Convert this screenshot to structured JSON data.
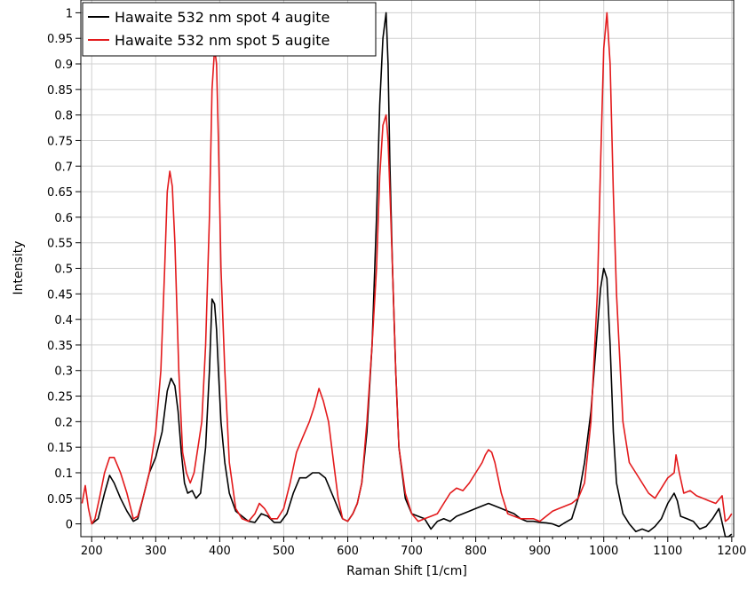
{
  "chart_data": {
    "type": "line",
    "title": "",
    "xlabel": "Raman Shift [1/cm]",
    "ylabel": "Intensity",
    "xlim": [
      183,
      1203
    ],
    "ylim": [
      -0.025,
      1.025
    ],
    "xticks": [
      200,
      300,
      400,
      500,
      600,
      700,
      800,
      900,
      1000,
      1100,
      1200
    ],
    "yticks": [
      0,
      0.05,
      0.1,
      0.15,
      0.2,
      0.25,
      0.3,
      0.35,
      0.4,
      0.45,
      0.5,
      0.55,
      0.6,
      0.65,
      0.7,
      0.75,
      0.8,
      0.85,
      0.9,
      0.95,
      1
    ],
    "ytick_labels": [
      "0",
      "0.05",
      "0.1",
      "0.15",
      "0.2",
      "0.25",
      "0.3",
      "0.35",
      "0.4",
      "0.45",
      "0.5",
      "0.55",
      "0.6",
      "0.65",
      "0.7",
      "0.75",
      "0.8",
      "0.85",
      "0.9",
      "0.95",
      "1"
    ],
    "grid": true,
    "legend_position": "top-left",
    "series": [
      {
        "name": "Hawaite 532 nm spot 4 augite",
        "color": "#000000",
        "x": [
          200,
          210,
          220,
          228,
          235,
          245,
          255,
          265,
          272,
          280,
          290,
          300,
          310,
          318,
          324,
          330,
          335,
          340,
          345,
          350,
          357,
          363,
          370,
          378,
          384,
          388,
          392,
          395,
          398,
          402,
          408,
          415,
          425,
          435,
          445,
          455,
          465,
          475,
          485,
          495,
          505,
          515,
          525,
          535,
          545,
          555,
          565,
          575,
          585,
          592,
          600,
          608,
          615,
          622,
          630,
          638,
          645,
          650,
          655,
          660,
          663,
          666,
          670,
          675,
          680,
          690,
          700,
          710,
          720,
          730,
          740,
          750,
          760,
          770,
          780,
          790,
          800,
          810,
          820,
          830,
          840,
          850,
          860,
          870,
          880,
          890,
          900,
          910,
          920,
          930,
          940,
          950,
          960,
          970,
          980,
          990,
          995,
          1000,
          1005,
          1010,
          1015,
          1020,
          1030,
          1040,
          1050,
          1060,
          1070,
          1080,
          1090,
          1100,
          1110,
          1115,
          1120,
          1130,
          1140,
          1150,
          1160,
          1170,
          1180,
          1190,
          1195,
          1200
        ],
        "y": [
          0.0,
          0.01,
          0.06,
          0.095,
          0.08,
          0.05,
          0.025,
          0.005,
          0.01,
          0.05,
          0.1,
          0.13,
          0.18,
          0.26,
          0.285,
          0.27,
          0.22,
          0.14,
          0.08,
          0.06,
          0.065,
          0.05,
          0.06,
          0.15,
          0.3,
          0.44,
          0.43,
          0.38,
          0.3,
          0.2,
          0.12,
          0.06,
          0.025,
          0.015,
          0.005,
          0.003,
          0.02,
          0.015,
          0.003,
          0.003,
          0.02,
          0.06,
          0.09,
          0.09,
          0.1,
          0.1,
          0.09,
          0.06,
          0.03,
          0.01,
          0.005,
          0.02,
          0.04,
          0.08,
          0.18,
          0.35,
          0.6,
          0.82,
          0.95,
          1.0,
          0.9,
          0.7,
          0.5,
          0.3,
          0.15,
          0.05,
          0.02,
          0.015,
          0.01,
          -0.01,
          0.005,
          0.01,
          0.005,
          0.015,
          0.02,
          0.025,
          0.03,
          0.035,
          0.04,
          0.035,
          0.03,
          0.025,
          0.02,
          0.01,
          0.005,
          0.005,
          0.003,
          0.002,
          0.0,
          -0.005,
          0.003,
          0.01,
          0.05,
          0.12,
          0.22,
          0.38,
          0.46,
          0.5,
          0.48,
          0.35,
          0.18,
          0.08,
          0.02,
          0.0,
          -0.015,
          -0.01,
          -0.015,
          -0.005,
          0.01,
          0.04,
          0.06,
          0.045,
          0.015,
          0.01,
          0.005,
          -0.01,
          -0.005,
          0.01,
          0.03,
          -0.025,
          -0.025,
          -0.02
        ]
      },
      {
        "name": "Hawaite 532 nm spot 5 augite",
        "color": "#e31a1c",
        "x": [
          185,
          190,
          195,
          200,
          205,
          212,
          220,
          228,
          235,
          245,
          255,
          265,
          272,
          280,
          290,
          300,
          308,
          314,
          318,
          322,
          326,
          330,
          336,
          342,
          348,
          354,
          360,
          366,
          372,
          378,
          384,
          388,
          392,
          395,
          398,
          402,
          408,
          415,
          425,
          435,
          445,
          455,
          462,
          470,
          480,
          490,
          500,
          510,
          520,
          530,
          540,
          548,
          555,
          562,
          570,
          578,
          585,
          592,
          600,
          608,
          615,
          622,
          630,
          638,
          645,
          650,
          655,
          660,
          663,
          666,
          670,
          675,
          680,
          690,
          700,
          710,
          720,
          730,
          740,
          750,
          760,
          770,
          780,
          790,
          800,
          810,
          815,
          820,
          825,
          830,
          840,
          850,
          860,
          870,
          880,
          890,
          900,
          910,
          920,
          930,
          940,
          950,
          960,
          970,
          980,
          990,
          995,
          1000,
          1005,
          1010,
          1015,
          1020,
          1030,
          1040,
          1050,
          1060,
          1070,
          1080,
          1090,
          1100,
          1110,
          1113,
          1118,
          1125,
          1135,
          1145,
          1155,
          1165,
          1175,
          1185,
          1190,
          1195,
          1200
        ],
        "y": [
          0.04,
          0.075,
          0.03,
          0.0,
          0.01,
          0.05,
          0.1,
          0.13,
          0.13,
          0.1,
          0.06,
          0.01,
          0.015,
          0.05,
          0.1,
          0.18,
          0.3,
          0.5,
          0.65,
          0.69,
          0.66,
          0.55,
          0.3,
          0.14,
          0.1,
          0.08,
          0.1,
          0.15,
          0.2,
          0.35,
          0.6,
          0.85,
          0.93,
          0.9,
          0.75,
          0.5,
          0.3,
          0.12,
          0.03,
          0.01,
          0.005,
          0.02,
          0.04,
          0.03,
          0.01,
          0.01,
          0.03,
          0.08,
          0.14,
          0.17,
          0.2,
          0.23,
          0.265,
          0.24,
          0.2,
          0.12,
          0.05,
          0.01,
          0.005,
          0.02,
          0.04,
          0.08,
          0.2,
          0.35,
          0.5,
          0.68,
          0.78,
          0.8,
          0.75,
          0.65,
          0.5,
          0.3,
          0.15,
          0.06,
          0.02,
          0.005,
          0.01,
          0.015,
          0.02,
          0.04,
          0.06,
          0.07,
          0.065,
          0.08,
          0.1,
          0.12,
          0.135,
          0.145,
          0.14,
          0.12,
          0.06,
          0.02,
          0.015,
          0.01,
          0.01,
          0.01,
          0.005,
          0.015,
          0.025,
          0.03,
          0.035,
          0.04,
          0.05,
          0.08,
          0.2,
          0.45,
          0.7,
          0.93,
          1.0,
          0.9,
          0.65,
          0.45,
          0.2,
          0.12,
          0.1,
          0.08,
          0.06,
          0.05,
          0.07,
          0.09,
          0.1,
          0.135,
          0.1,
          0.06,
          0.065,
          0.055,
          0.05,
          0.045,
          0.04,
          0.055,
          0.005,
          0.01,
          0.02
        ]
      }
    ]
  }
}
